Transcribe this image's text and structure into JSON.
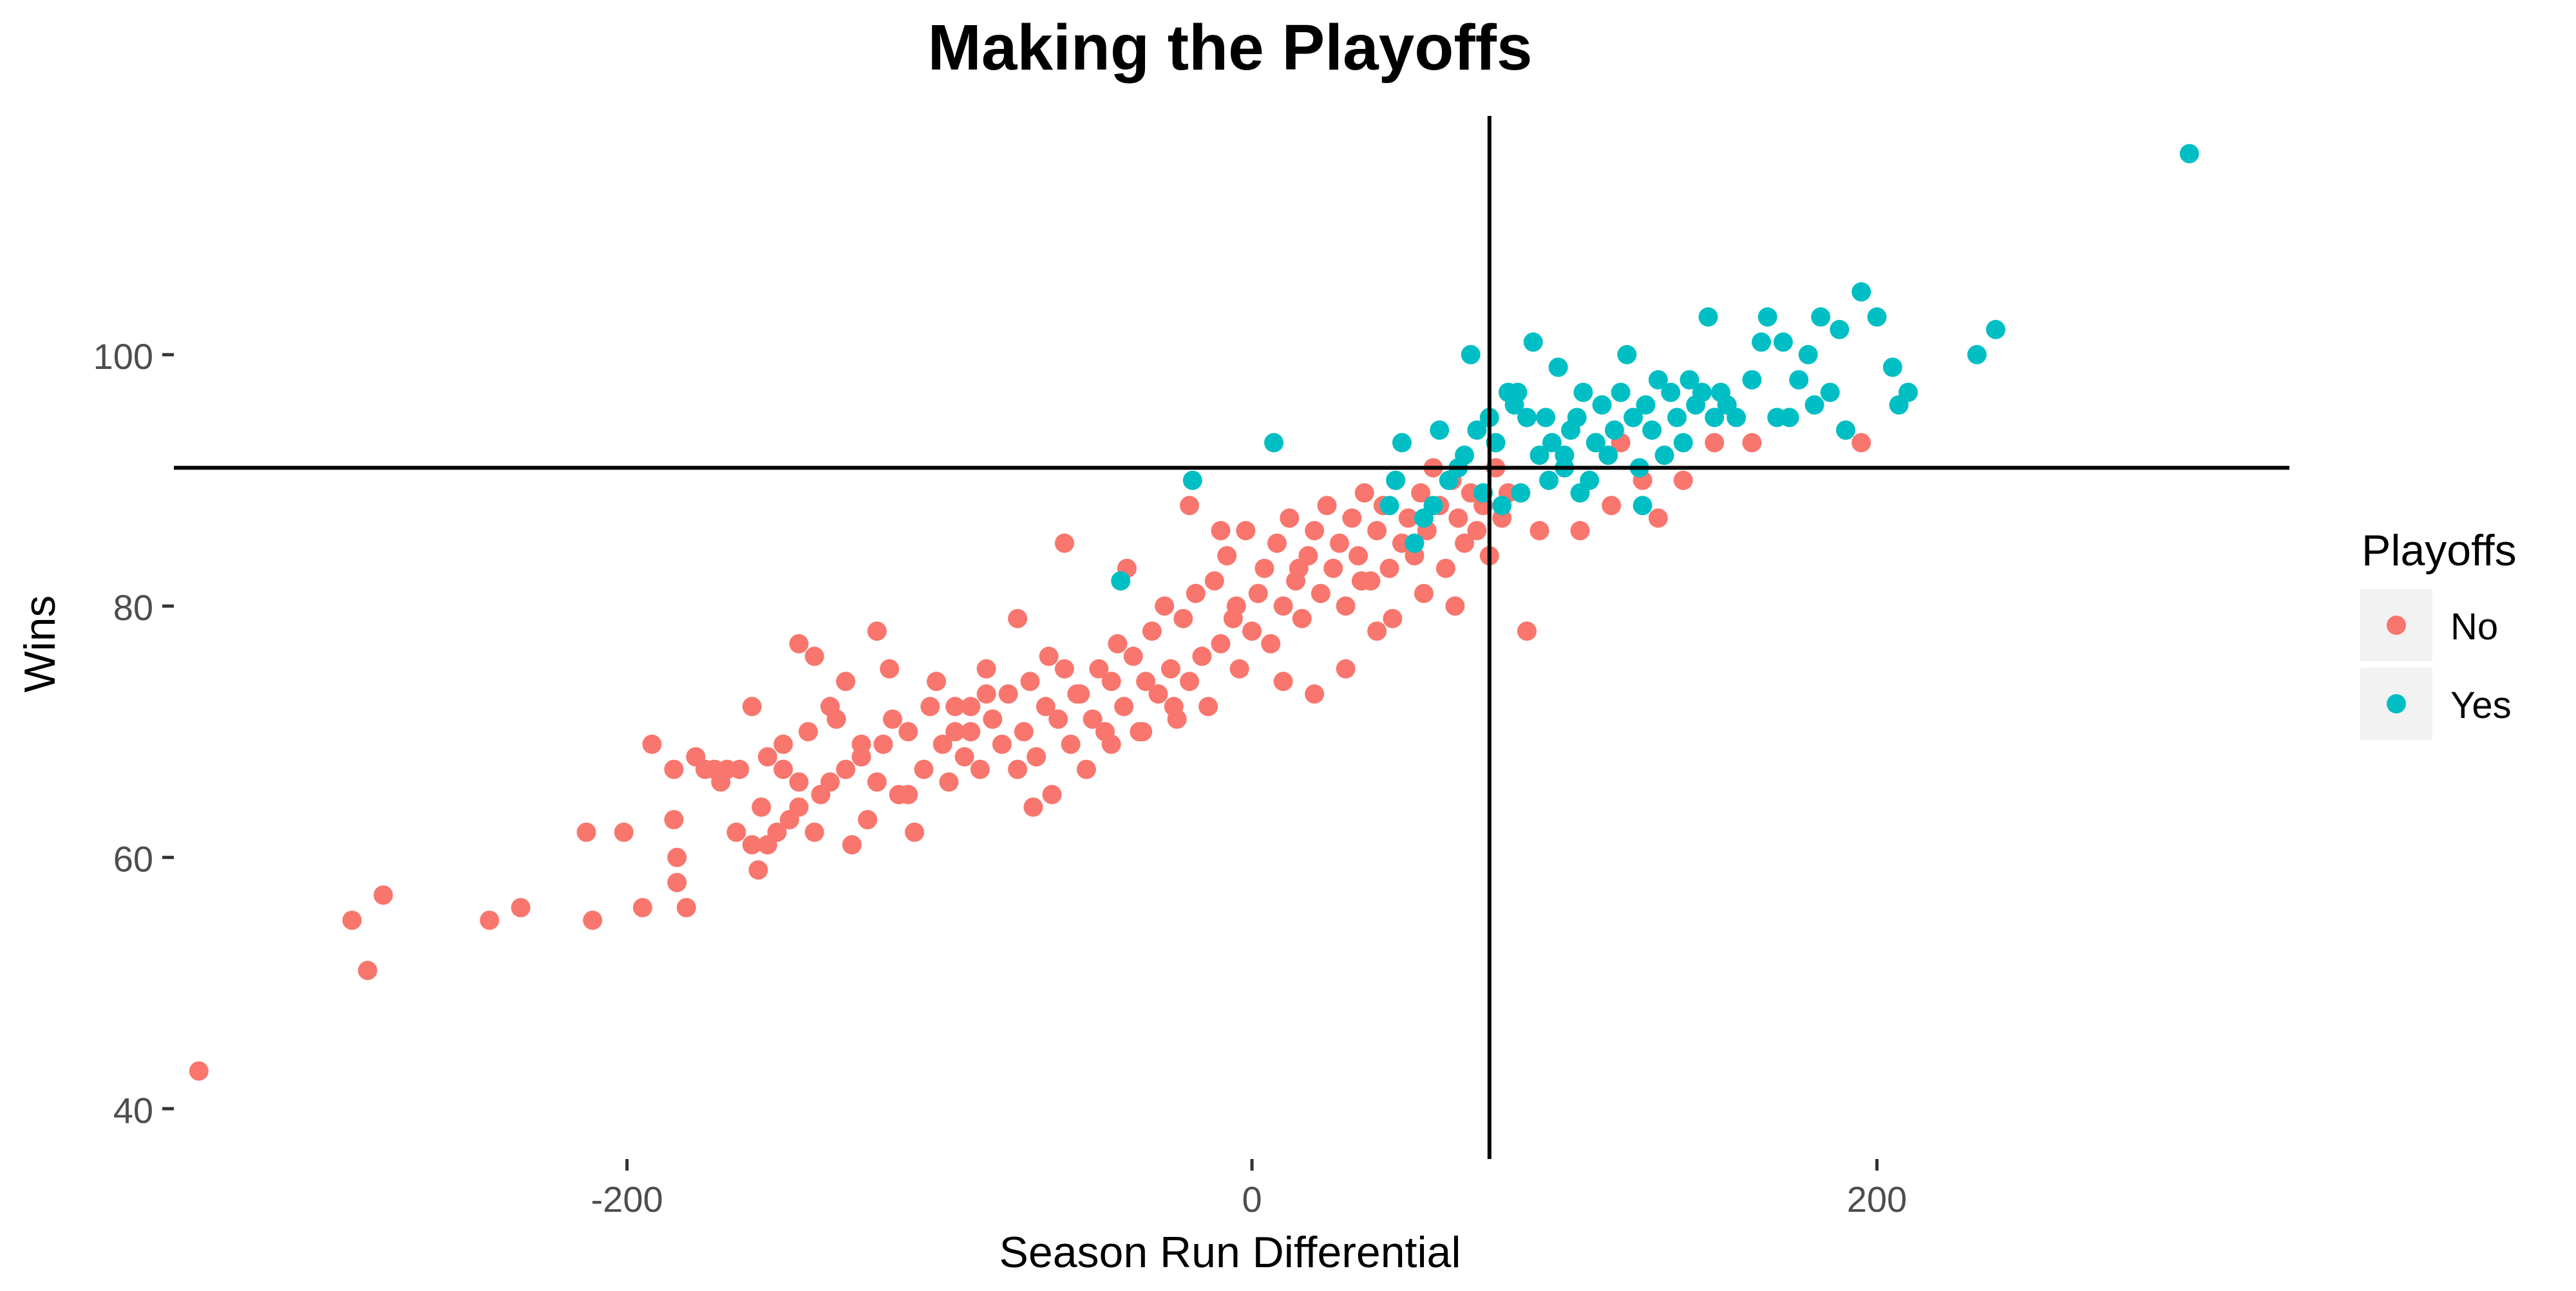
{
  "chart_data": {
    "type": "scatter",
    "title": "Making the Playoffs",
    "xlabel": "Season Run Differential",
    "ylabel": "Wins",
    "xlim": [
      -345,
      332
    ],
    "ylim": [
      36,
      119
    ],
    "x_ticks": [
      -200,
      0,
      200
    ],
    "x_tick_labels": [
      "-200",
      "0",
      "200"
    ],
    "y_ticks": [
      40,
      60,
      80,
      100
    ],
    "y_tick_labels": [
      "40",
      "60",
      "80",
      "100"
    ],
    "grid": false,
    "legend": {
      "title": "Playoffs",
      "position": "right",
      "entries": [
        {
          "label": "No",
          "color": "#F8766D"
        },
        {
          "label": "Yes",
          "color": "#00BFC4"
        }
      ]
    },
    "reference_lines": {
      "vertical_x": 76,
      "horizontal_y": 91
    },
    "series": [
      {
        "name": "No",
        "color": "#F8766D",
        "points": [
          [
            -337,
            43
          ],
          [
            -288,
            55
          ],
          [
            -283,
            51
          ],
          [
            -278,
            57
          ],
          [
            -244,
            55
          ],
          [
            -234,
            56
          ],
          [
            -213,
            62
          ],
          [
            -211,
            55
          ],
          [
            -201,
            62
          ],
          [
            -195,
            56
          ],
          [
            -192,
            69
          ],
          [
            -185,
            67
          ],
          [
            -185,
            63
          ],
          [
            -184,
            60
          ],
          [
            -184,
            58
          ],
          [
            -181,
            56
          ],
          [
            -178,
            68
          ],
          [
            -172,
            67
          ],
          [
            -168,
            67
          ],
          [
            -164,
            67
          ],
          [
            -160,
            61
          ],
          [
            -158,
            59
          ],
          [
            -157,
            64
          ],
          [
            -155,
            68
          ],
          [
            -152,
            62
          ],
          [
            -150,
            67
          ],
          [
            -148,
            63
          ],
          [
            -145,
            66
          ],
          [
            -142,
            70
          ],
          [
            -140,
            62
          ],
          [
            -138,
            65
          ],
          [
            -135,
            72
          ],
          [
            -133,
            71
          ],
          [
            -130,
            67
          ],
          [
            -128,
            61
          ],
          [
            -125,
            68
          ],
          [
            -123,
            63
          ],
          [
            -120,
            66
          ],
          [
            -118,
            69
          ],
          [
            -116,
            75
          ],
          [
            -113,
            65
          ],
          [
            -110,
            70
          ],
          [
            -108,
            62
          ],
          [
            -105,
            67
          ],
          [
            -103,
            72
          ],
          [
            -101,
            74
          ],
          [
            -99,
            69
          ],
          [
            -97,
            66
          ],
          [
            -95,
            70
          ],
          [
            -92,
            68
          ],
          [
            -90,
            72
          ],
          [
            -87,
            67
          ],
          [
            -85,
            75
          ],
          [
            -83,
            71
          ],
          [
            -80,
            69
          ],
          [
            -78,
            73
          ],
          [
            -75,
            67
          ],
          [
            -73,
            70
          ],
          [
            -71,
            74
          ],
          [
            -69,
            68
          ],
          [
            -66,
            72
          ],
          [
            -64,
            65
          ],
          [
            -62,
            71
          ],
          [
            -60,
            75
          ],
          [
            -58,
            69
          ],
          [
            -56,
            73
          ],
          [
            -53,
            67
          ],
          [
            -51,
            71
          ],
          [
            -49,
            75
          ],
          [
            -47,
            70
          ],
          [
            -45,
            74
          ],
          [
            -43,
            77
          ],
          [
            -41,
            72
          ],
          [
            -38,
            76
          ],
          [
            -36,
            70
          ],
          [
            -34,
            74
          ],
          [
            -32,
            78
          ],
          [
            -30,
            73
          ],
          [
            -28,
            80
          ],
          [
            -26,
            75
          ],
          [
            -24,
            71
          ],
          [
            -22,
            79
          ],
          [
            -20,
            74
          ],
          [
            -18,
            81
          ],
          [
            -16,
            76
          ],
          [
            -14,
            72
          ],
          [
            -12,
            82
          ],
          [
            -10,
            77
          ],
          [
            -8,
            84
          ],
          [
            -6,
            79
          ],
          [
            -4,
            75
          ],
          [
            -2,
            86
          ],
          [
            0,
            78
          ],
          [
            2,
            81
          ],
          [
            4,
            83
          ],
          [
            6,
            77
          ],
          [
            8,
            85
          ],
          [
            10,
            80
          ],
          [
            12,
            87
          ],
          [
            14,
            82
          ],
          [
            16,
            79
          ],
          [
            18,
            84
          ],
          [
            20,
            86
          ],
          [
            22,
            81
          ],
          [
            24,
            88
          ],
          [
            26,
            83
          ],
          [
            28,
            85
          ],
          [
            30,
            80
          ],
          [
            32,
            87
          ],
          [
            34,
            84
          ],
          [
            36,
            89
          ],
          [
            38,
            82
          ],
          [
            40,
            86
          ],
          [
            42,
            88
          ],
          [
            44,
            83
          ],
          [
            46,
            90
          ],
          [
            48,
            85
          ],
          [
            50,
            87
          ],
          [
            52,
            84
          ],
          [
            54,
            89
          ],
          [
            56,
            86
          ],
          [
            58,
            91
          ],
          [
            60,
            88
          ],
          [
            62,
            83
          ],
          [
            64,
            90
          ],
          [
            66,
            87
          ],
          [
            68,
            85
          ],
          [
            70,
            89
          ],
          [
            72,
            86
          ],
          [
            74,
            88
          ],
          [
            76,
            84
          ],
          [
            78,
            91
          ],
          [
            80,
            87
          ],
          [
            82,
            89
          ],
          [
            88,
            78
          ],
          [
            92,
            86
          ],
          [
            105,
            86
          ],
          [
            115,
            88
          ],
          [
            118,
            93
          ],
          [
            125,
            90
          ],
          [
            130,
            87
          ],
          [
            138,
            90
          ],
          [
            148,
            93
          ],
          [
            152,
            96
          ],
          [
            160,
            93
          ],
          [
            195,
            93
          ],
          [
            -140,
            76
          ],
          [
            -145,
            77
          ],
          [
            -120,
            78
          ],
          [
            -95,
            72
          ],
          [
            -60,
            85
          ],
          [
            -40,
            83
          ],
          [
            -20,
            88
          ],
          [
            -10,
            86
          ],
          [
            10,
            74
          ],
          [
            20,
            73
          ],
          [
            30,
            75
          ],
          [
            40,
            78
          ],
          [
            -70,
            64
          ],
          [
            -110,
            65
          ],
          [
            -90,
            70
          ],
          [
            -130,
            74
          ],
          [
            -150,
            69
          ],
          [
            -170,
            66
          ],
          [
            -160,
            72
          ],
          [
            -5,
            80
          ],
          [
            15,
            83
          ],
          [
            35,
            82
          ],
          [
            55,
            81
          ],
          [
            45,
            79
          ],
          [
            65,
            80
          ],
          [
            -25,
            72
          ],
          [
            -35,
            70
          ],
          [
            -45,
            69
          ],
          [
            -55,
            73
          ],
          [
            -65,
            76
          ],
          [
            -75,
            79
          ],
          [
            -85,
            73
          ],
          [
            -115,
            71
          ],
          [
            -125,
            69
          ],
          [
            -135,
            66
          ],
          [
            -145,
            64
          ],
          [
            -155,
            61
          ],
          [
            -165,
            62
          ],
          [
            -175,
            67
          ]
        ]
      },
      {
        "name": "Yes",
        "color": "#00BFC4",
        "points": [
          [
            -42,
            82
          ],
          [
            -19,
            90
          ],
          [
            7,
            93
          ],
          [
            44,
            88
          ],
          [
            46,
            90
          ],
          [
            48,
            93
          ],
          [
            52,
            85
          ],
          [
            55,
            87
          ],
          [
            58,
            88
          ],
          [
            60,
            94
          ],
          [
            63,
            90
          ],
          [
            66,
            91
          ],
          [
            68,
            92
          ],
          [
            70,
            100
          ],
          [
            72,
            94
          ],
          [
            74,
            89
          ],
          [
            76,
            95
          ],
          [
            78,
            93
          ],
          [
            80,
            88
          ],
          [
            82,
            97
          ],
          [
            84,
            96
          ],
          [
            86,
            89
          ],
          [
            88,
            95
          ],
          [
            90,
            101
          ],
          [
            92,
            92
          ],
          [
            94,
            95
          ],
          [
            96,
            93
          ],
          [
            98,
            99
          ],
          [
            100,
            91
          ],
          [
            102,
            94
          ],
          [
            104,
            95
          ],
          [
            106,
            97
          ],
          [
            108,
            90
          ],
          [
            110,
            93
          ],
          [
            112,
            96
          ],
          [
            114,
            92
          ],
          [
            116,
            94
          ],
          [
            118,
            97
          ],
          [
            120,
            100
          ],
          [
            122,
            95
          ],
          [
            124,
            91
          ],
          [
            126,
            96
          ],
          [
            128,
            94
          ],
          [
            130,
            98
          ],
          [
            132,
            92
          ],
          [
            134,
            97
          ],
          [
            136,
            95
          ],
          [
            138,
            93
          ],
          [
            140,
            98
          ],
          [
            142,
            96
          ],
          [
            144,
            97
          ],
          [
            146,
            103
          ],
          [
            148,
            95
          ],
          [
            150,
            97
          ],
          [
            152,
            96
          ],
          [
            155,
            95
          ],
          [
            160,
            98
          ],
          [
            163,
            101
          ],
          [
            165,
            103
          ],
          [
            168,
            95
          ],
          [
            170,
            101
          ],
          [
            172,
            95
          ],
          [
            175,
            98
          ],
          [
            178,
            100
          ],
          [
            180,
            96
          ],
          [
            182,
            103
          ],
          [
            185,
            97
          ],
          [
            188,
            102
          ],
          [
            190,
            94
          ],
          [
            195,
            105
          ],
          [
            200,
            103
          ],
          [
            205,
            99
          ],
          [
            207,
            96
          ],
          [
            210,
            97
          ],
          [
            232,
            100
          ],
          [
            238,
            102
          ],
          [
            300,
            116
          ],
          [
            125,
            88
          ],
          [
            85,
            97
          ],
          [
            95,
            90
          ],
          [
            100,
            92
          ],
          [
            105,
            89
          ],
          [
            110,
            93
          ]
        ]
      }
    ]
  }
}
